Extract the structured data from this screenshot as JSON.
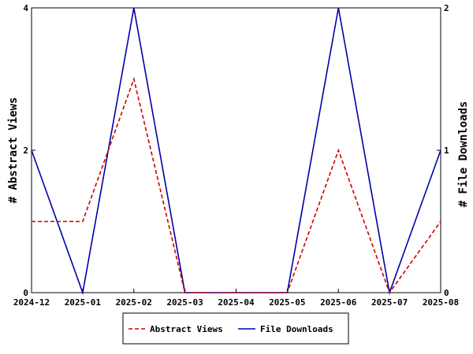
{
  "chart_data": {
    "type": "line",
    "x": [
      "2024-12",
      "2025-01",
      "2025-02",
      "2025-03",
      "2025-04",
      "2025-05",
      "2025-06",
      "2025-07",
      "2025-08"
    ],
    "ylabel_left": "# Abstract Views",
    "ylabel_right": "# File Downloads",
    "ylim_left": [
      0,
      4
    ],
    "ylim_right": [
      0,
      2
    ],
    "yticks_left": [
      "0",
      "2",
      "4"
    ],
    "yticks_right": [
      "0",
      "1",
      "2"
    ],
    "series": [
      {
        "name": "Abstract Views",
        "axis": "left",
        "color": "#cc0000",
        "style": "dashed",
        "values": [
          1,
          1,
          3,
          0,
          0,
          0,
          2,
          0,
          1
        ]
      },
      {
        "name": "File Downloads",
        "axis": "right",
        "color": "#0000aa",
        "style": "solid",
        "values": [
          1,
          0,
          2,
          0,
          0,
          0,
          2,
          0,
          1
        ]
      }
    ],
    "grid": false,
    "legend_position": "bottom"
  }
}
